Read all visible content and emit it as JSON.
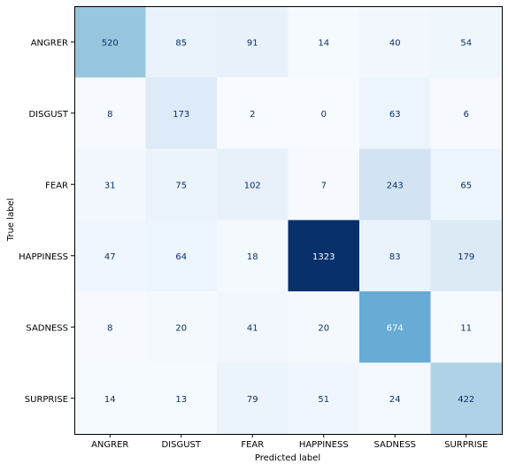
{
  "chart_data": {
    "type": "heatmap",
    "title": "",
    "xlabel": "Predicted label",
    "ylabel": "True label",
    "x_categories": [
      "ANGRER",
      "DISGUST",
      "FEAR",
      "HAPPINESS",
      "SADNESS",
      "SURPRISE"
    ],
    "y_categories": [
      "ANGRER",
      "DISGUST",
      "FEAR",
      "HAPPINESS",
      "SADNESS",
      "SURPRISE"
    ],
    "values": [
      [
        520,
        85,
        91,
        14,
        40,
        54
      ],
      [
        8,
        173,
        2,
        0,
        63,
        6
      ],
      [
        31,
        75,
        102,
        7,
        243,
        65
      ],
      [
        47,
        64,
        18,
        1323,
        83,
        179
      ],
      [
        8,
        20,
        41,
        20,
        674,
        11
      ],
      [
        14,
        13,
        79,
        51,
        24,
        422
      ]
    ],
    "colormap": "Blues",
    "vmin": 0,
    "vmax": 1323,
    "grid": false,
    "colorbar": false,
    "label_color_dark": "#08306b",
    "label_color_light": "#ffffff"
  }
}
